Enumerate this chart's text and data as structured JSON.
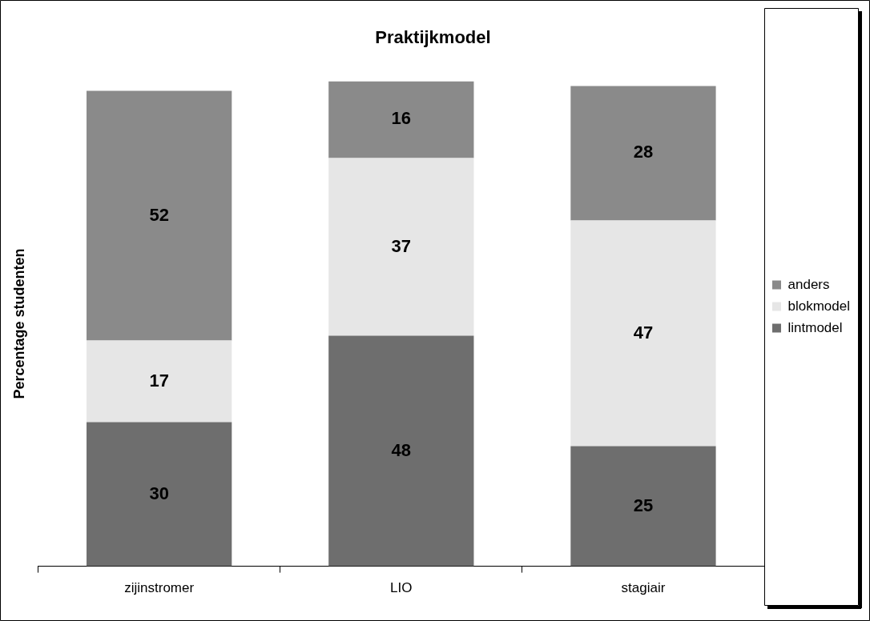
{
  "chart_data": {
    "type": "bar",
    "title": "Praktijkmodel",
    "ylabel": "Percentage studenten",
    "categories": [
      "zijinstromer",
      "LIO",
      "stagiair"
    ],
    "stacked": true,
    "data_labels": true,
    "legend": "right",
    "tick_labels": "x",
    "grid": false,
    "series": [
      {
        "name": "lintmodel",
        "color": "#6e6e6e",
        "values": [
          30,
          48,
          25
        ]
      },
      {
        "name": "blokmodel",
        "color": "#e6e6e6",
        "values": [
          17,
          37,
          47
        ]
      },
      {
        "name": "anders",
        "color": "#8a8a8a",
        "values": [
          52,
          16,
          28
        ]
      }
    ]
  }
}
